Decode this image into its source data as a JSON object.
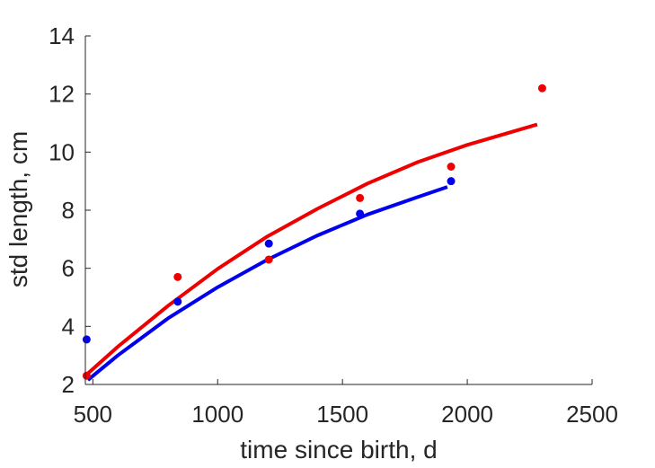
{
  "chart_data": {
    "type": "scatter",
    "title": "",
    "xlabel": "time since birth, d",
    "ylabel": "std length, cm",
    "xlim": [
      470,
      2500
    ],
    "ylim": [
      2,
      14
    ],
    "xticks": [
      500,
      1000,
      1500,
      2000,
      2500
    ],
    "yticks": [
      2,
      4,
      6,
      8,
      10,
      12,
      14
    ],
    "grid": false,
    "legend": "none",
    "series": [
      {
        "color": "#0000ee",
        "points": [
          {
            "x": 475,
            "y": 3.55
          },
          {
            "x": 840,
            "y": 4.85
          },
          {
            "x": 1205,
            "y": 6.85
          },
          {
            "x": 1570,
            "y": 7.88
          },
          {
            "x": 1935,
            "y": 9.0
          }
        ],
        "fit": [
          {
            "x": 480,
            "y": 2.15
          },
          {
            "x": 600,
            "y": 3.0
          },
          {
            "x": 800,
            "y": 4.27
          },
          {
            "x": 1000,
            "y": 5.35
          },
          {
            "x": 1200,
            "y": 6.3
          },
          {
            "x": 1400,
            "y": 7.13
          },
          {
            "x": 1600,
            "y": 7.85
          },
          {
            "x": 1800,
            "y": 8.45
          },
          {
            "x": 1920,
            "y": 8.8
          }
        ]
      },
      {
        "color": "#ee0000",
        "points": [
          {
            "x": 475,
            "y": 2.3
          },
          {
            "x": 840,
            "y": 5.7
          },
          {
            "x": 1205,
            "y": 6.3
          },
          {
            "x": 1570,
            "y": 8.42
          },
          {
            "x": 1935,
            "y": 9.5
          },
          {
            "x": 2300,
            "y": 12.2
          }
        ],
        "fit": [
          {
            "x": 470,
            "y": 2.3
          },
          {
            "x": 600,
            "y": 3.3
          },
          {
            "x": 800,
            "y": 4.7
          },
          {
            "x": 1000,
            "y": 5.98
          },
          {
            "x": 1200,
            "y": 7.1
          },
          {
            "x": 1400,
            "y": 8.05
          },
          {
            "x": 1600,
            "y": 8.92
          },
          {
            "x": 1800,
            "y": 9.65
          },
          {
            "x": 2000,
            "y": 10.25
          },
          {
            "x": 2280,
            "y": 10.95
          }
        ]
      }
    ]
  }
}
